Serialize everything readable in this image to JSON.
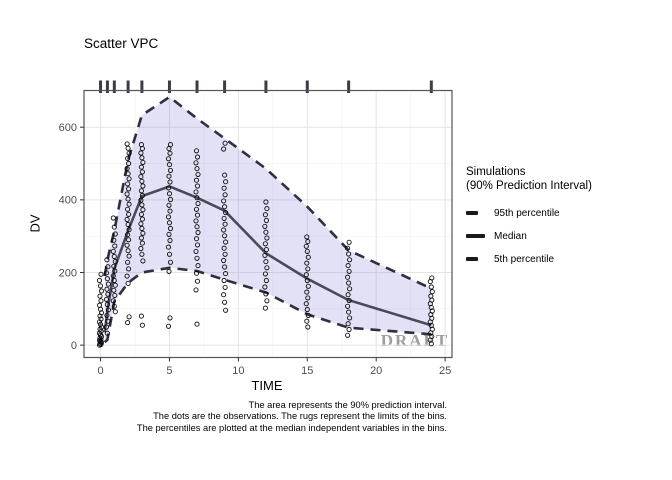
{
  "title": "Scatter VPC",
  "watermark": "DRAFT",
  "legend": {
    "title_line1": "Simulations",
    "title_line2": "(90% Prediction Interval)",
    "items": [
      {
        "label": "95th percentile",
        "key": "dashed"
      },
      {
        "label": "Median",
        "key": "solid"
      },
      {
        "label": "5th percentile",
        "key": "dashed"
      }
    ]
  },
  "caption": {
    "lines": [
      "The area represents the 90% prediction interval.",
      "The dots are the observations. The rugs represent the limits of the bins.",
      "The percentiles are plotted at the median independent variables in the bins."
    ]
  },
  "colors": {
    "ribbon_fill": "rgba(127,118,208,0.22)",
    "percentile_line": "#2f2f3f",
    "median_line": "#4a4a5a",
    "point": "#000000",
    "rug": "#3c3c49",
    "grid_major": "#e4e4e4",
    "grid_minor": "#f2f2f2",
    "panel_border": "#555555",
    "tick": "#333333",
    "tick_label": "#4d4d4d",
    "watermark": "#8e8e8e"
  },
  "chart_data": {
    "type": "scatter",
    "title": "Scatter VPC",
    "xlabel": "TIME",
    "ylabel": "DV",
    "xlim": [
      -1.2,
      25.5
    ],
    "ylim": [
      -34,
      701
    ],
    "x_ticks": [
      0,
      5,
      10,
      15,
      20,
      25
    ],
    "x_minor": [
      2.5,
      7.5,
      12.5,
      17.5,
      22.5
    ],
    "y_ticks": [
      0,
      200,
      400,
      600
    ],
    "y_minor": [
      100,
      300,
      500
    ],
    "grid": true,
    "legend_position": "right",
    "legend_title": "Simulations (90% Prediction Interval)",
    "rug_times": [
      0,
      0.5,
      1,
      2,
      3,
      5,
      7,
      9,
      12,
      15,
      18,
      24
    ],
    "series": [
      {
        "name": "95th percentile",
        "style": "dashed",
        "points": [
          [
            0.3,
            190
          ],
          [
            0.5,
            235
          ],
          [
            1,
            315
          ],
          [
            2,
            510
          ],
          [
            3,
            633
          ],
          [
            5,
            683
          ],
          [
            7,
            624
          ],
          [
            9,
            569
          ],
          [
            12,
            486
          ],
          [
            15,
            381
          ],
          [
            18,
            261
          ],
          [
            24,
            156
          ]
        ]
      },
      {
        "name": "Median",
        "style": "solid",
        "points": [
          [
            0.3,
            35
          ],
          [
            0.5,
            95
          ],
          [
            1,
            210
          ],
          [
            2,
            315
          ],
          [
            3,
            410
          ],
          [
            5,
            437
          ],
          [
            7,
            406
          ],
          [
            9,
            370
          ],
          [
            12,
            253
          ],
          [
            15,
            183
          ],
          [
            18,
            124
          ],
          [
            24,
            55
          ]
        ]
      },
      {
        "name": "5th percentile",
        "style": "dashed",
        "points": [
          [
            0.3,
            8
          ],
          [
            0.5,
            15
          ],
          [
            1,
            120
          ],
          [
            2,
            172
          ],
          [
            3,
            200
          ],
          [
            5,
            213
          ],
          [
            7,
            204
          ],
          [
            9,
            180
          ],
          [
            12,
            145
          ],
          [
            15,
            85
          ],
          [
            18,
            48
          ],
          [
            24,
            30
          ]
        ]
      }
    ],
    "ribbon": {
      "between": [
        "95th percentile",
        "5th percentile"
      ]
    },
    "observations": [
      {
        "time": 0,
        "dv": [
          0,
          2,
          4,
          7,
          10,
          13,
          16,
          20,
          24,
          28,
          33,
          38,
          44,
          50,
          57,
          64,
          72,
          80,
          89,
          99,
          110,
          122,
          135,
          149,
          163,
          178,
          195
        ]
      },
      {
        "time": 0.5,
        "dv": [
          33,
          50,
          66,
          82,
          97,
          112,
          126,
          140,
          154,
          168,
          183,
          199,
          216,
          235
        ]
      },
      {
        "time": 1,
        "dv": [
          92,
          107,
          122,
          137,
          151,
          165,
          178,
          191,
          204,
          217,
          230,
          244,
          258,
          273,
          289,
          306,
          325,
          350
        ]
      },
      {
        "time": 2,
        "dv": [
          62,
          78,
          170,
          190,
          210,
          228,
          245,
          260,
          275,
          290,
          304,
          318,
          332,
          346,
          360,
          374,
          388,
          402,
          416,
          430,
          444,
          458,
          472,
          486,
          500,
          514,
          528,
          542,
          554
        ]
      },
      {
        "time": 3,
        "dv": [
          55,
          80,
          232,
          250,
          266,
          281,
          295,
          308,
          321,
          334,
          347,
          360,
          373,
          386,
          399,
          412,
          425,
          438,
          451,
          464,
          477,
          490,
          503,
          516,
          529,
          541,
          552
        ]
      },
      {
        "time": 5,
        "dv": [
          52,
          75,
          203,
          228,
          250,
          270,
          288,
          305,
          321,
          337,
          353,
          369,
          385,
          401,
          417,
          433,
          449,
          465,
          481,
          497,
          513,
          528,
          541,
          552
        ]
      },
      {
        "time": 7,
        "dv": [
          58,
          152,
          176,
          198,
          219,
          239,
          258,
          276,
          293,
          310,
          326,
          342,
          358,
          374,
          390,
          406,
          422,
          438,
          454,
          470,
          486,
          502,
          518,
          535
        ]
      },
      {
        "time": 9,
        "dv": [
          96,
          118,
          139,
          159,
          178,
          197,
          215,
          233,
          250,
          267,
          284,
          301,
          317,
          333,
          349,
          365,
          381,
          397,
          414,
          432,
          450,
          468,
          540,
          556
        ]
      },
      {
        "time": 12,
        "dv": [
          102,
          122,
          141,
          160,
          178,
          196,
          213,
          230,
          247,
          263,
          279,
          295,
          311,
          327,
          343,
          359,
          376,
          394
        ]
      },
      {
        "time": 15,
        "dv": [
          50,
          66,
          82,
          98,
          114,
          130,
          146,
          162,
          178,
          194,
          210,
          226,
          242,
          258,
          272,
          285,
          298
        ]
      },
      {
        "time": 18,
        "dv": [
          27,
          43,
          59,
          75,
          91,
          107,
          123,
          139,
          155,
          171,
          187,
          203,
          219,
          235,
          251,
          267,
          283
        ]
      },
      {
        "time": 24,
        "dv": [
          4,
          14,
          24,
          34,
          44,
          54,
          64,
          74,
          84,
          94,
          104,
          114,
          124,
          135,
          147,
          160,
          175,
          185
        ]
      }
    ]
  }
}
